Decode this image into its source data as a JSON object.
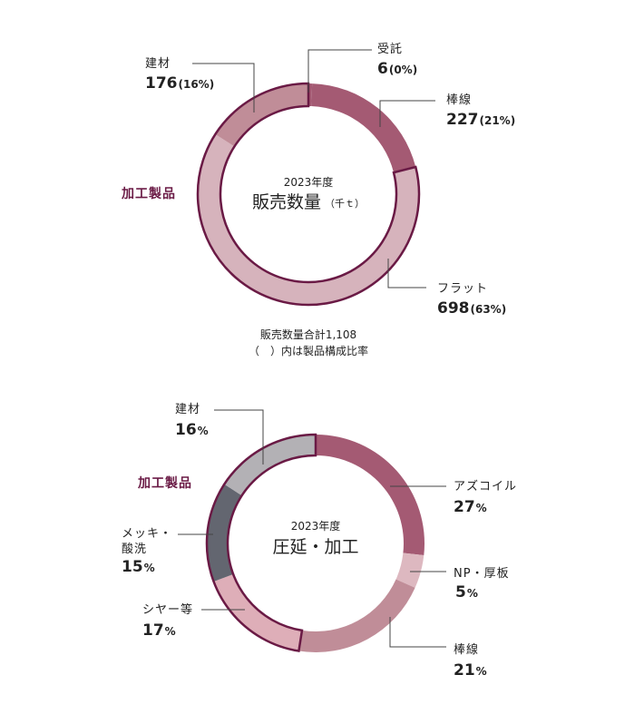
{
  "chart_data": [
    {
      "type": "pie",
      "center_year": "2023年度",
      "center_title": "販売数量",
      "center_unit": "（千ｔ）",
      "group_label": "加工製品",
      "footnote_1": "販売数量合計1,108",
      "footnote_2": "（　）内は製品構成比率",
      "slices": [
        {
          "name": "受託",
          "value_text": "6",
          "pct_text": "(0%)",
          "value": 6,
          "color": "#a45a73"
        },
        {
          "name": "棒線",
          "value_text": "227",
          "pct_text": "(21%)",
          "value": 227,
          "color": "#a45a73"
        },
        {
          "name": "フラット",
          "value_text": "698",
          "pct_text": "(63%)",
          "value": 698,
          "color": "#d6b3bc"
        },
        {
          "name": "建材",
          "value_text": "176",
          "pct_text": "(16%)",
          "value": 176,
          "color": "#c08d98"
        }
      ]
    },
    {
      "type": "pie",
      "center_year": "2023年度",
      "center_title": "圧延・加工",
      "group_label": "加工製品",
      "slices": [
        {
          "name": "アズコイル",
          "value_text": "27",
          "pct_text": "%",
          "value": 27,
          "color": "#a45a73"
        },
        {
          "name": "NP・厚板",
          "value_text": "5",
          "pct_text": "%",
          "value": 5,
          "color": "#ddb8c0"
        },
        {
          "name": "棒線",
          "value_text": "21",
          "pct_text": "%",
          "value": 21,
          "color": "#c08d98"
        },
        {
          "name": "シヤー等",
          "value_text": "17",
          "pct_text": "%",
          "value": 17,
          "color": "#deaeb8"
        },
        {
          "name": "メッキ・酸洗",
          "value_text": "15",
          "pct_text": "%",
          "value": 15,
          "color": "#636670"
        },
        {
          "name": "建材",
          "value_text": "16",
          "pct_text": "%",
          "value": 16,
          "color": "#b3b1b5"
        }
      ]
    }
  ]
}
